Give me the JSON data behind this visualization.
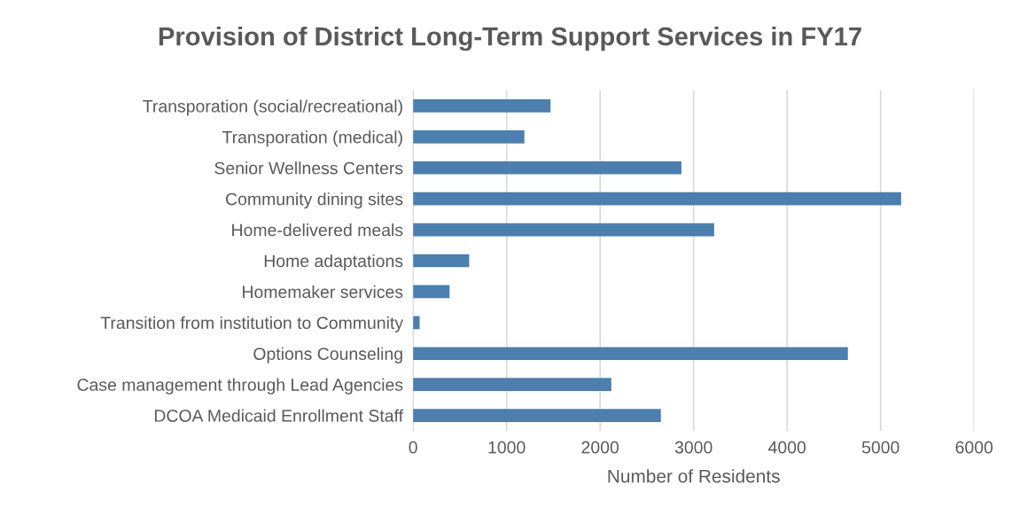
{
  "chart_data": {
    "type": "bar",
    "orientation": "horizontal",
    "title": "Provision of District Long-Term Support Services in FY17",
    "xlabel": "Number of Residents",
    "categories": [
      "Transporation (social/recreational)",
      "Transporation (medical)",
      "Senior Wellness Centers",
      "Community dining sites",
      "Home-delivered meals",
      "Home adaptations",
      "Homemaker services",
      "Transition from institution to Community",
      "Options Counseling",
      "Case management through Lead Agencies",
      "DCOA Medicaid Enrollment Staff"
    ],
    "values": [
      1470,
      1190,
      2870,
      5220,
      3220,
      600,
      390,
      70,
      4650,
      2120,
      2650
    ],
    "color": "#4a7fb0",
    "xlim": [
      0,
      6000
    ],
    "xticks": [
      0,
      1000,
      2000,
      3000,
      4000,
      5000,
      6000
    ],
    "grid": "x",
    "legend": false
  }
}
